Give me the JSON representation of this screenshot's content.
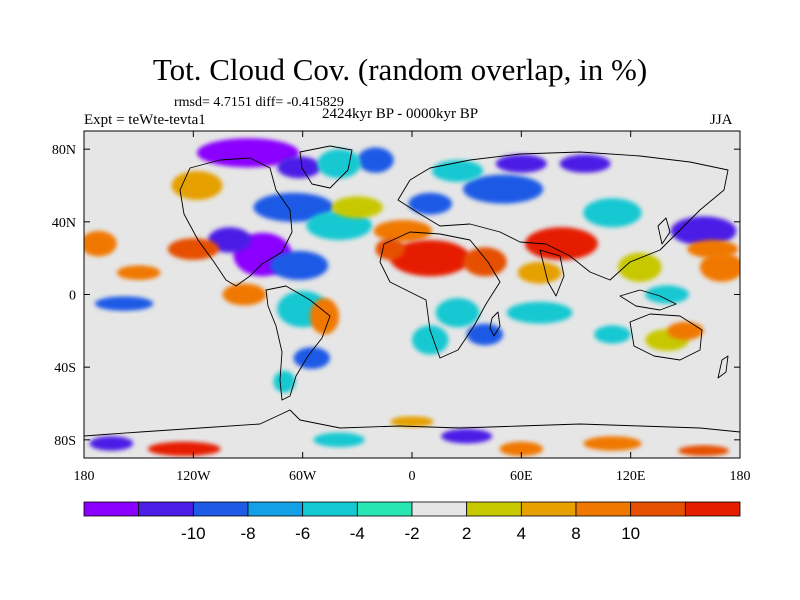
{
  "title": "Tot. Cloud Cov. (random overlap, in %)",
  "stats_text": "rmsd= 4.7151 diff= -0.415829",
  "experiment_text": "Expt = teWte-tevta1",
  "period_text": "2424kyr BP - 0000kyr BP",
  "season_text": "JJA",
  "map": {
    "lon_range": [
      -180,
      180
    ],
    "lat_range": [
      -90,
      90
    ],
    "lon_ticks": [
      {
        "value": -180,
        "label": "180"
      },
      {
        "value": -120,
        "label": "120W"
      },
      {
        "value": -60,
        "label": "60W"
      },
      {
        "value": 0,
        "label": "0"
      },
      {
        "value": 60,
        "label": "60E"
      },
      {
        "value": 120,
        "label": "120E"
      },
      {
        "value": 180,
        "label": "180"
      }
    ],
    "lat_ticks": [
      {
        "value": 80,
        "label": "80N"
      },
      {
        "value": 40,
        "label": "40N"
      },
      {
        "value": 0,
        "label": "0"
      },
      {
        "value": -40,
        "label": "40S"
      },
      {
        "value": -80,
        "label": "80S"
      }
    ],
    "background_color": "#e6e6e6",
    "coastline_color": "#000000",
    "field_regions": [
      {
        "lon": -90,
        "lat": 78,
        "rlon": 28,
        "rlat": 8,
        "level": -10
      },
      {
        "lon": -62,
        "lat": 70,
        "rlon": 12,
        "rlat": 6,
        "level": -8
      },
      {
        "lon": -20,
        "lat": 74,
        "rlon": 10,
        "rlat": 7,
        "level": -6
      },
      {
        "lon": -40,
        "lat": 72,
        "rlon": 12,
        "rlat": 8,
        "level": -4
      },
      {
        "lon": -118,
        "lat": 60,
        "rlon": 14,
        "rlat": 8,
        "level": 4
      },
      {
        "lon": -65,
        "lat": 48,
        "rlon": 22,
        "rlat": 8,
        "level": -6
      },
      {
        "lon": -40,
        "lat": 38,
        "rlon": 18,
        "rlat": 8,
        "level": -4
      },
      {
        "lon": -82,
        "lat": 22,
        "rlon": 16,
        "rlat": 12,
        "level": -10
      },
      {
        "lon": -100,
        "lat": 30,
        "rlon": 12,
        "rlat": 7,
        "level": -8
      },
      {
        "lon": -62,
        "lat": 16,
        "rlon": 16,
        "rlat": 8,
        "level": -6
      },
      {
        "lon": -120,
        "lat": 25,
        "rlon": 14,
        "rlat": 6,
        "level": 8
      },
      {
        "lon": -172,
        "lat": 28,
        "rlon": 10,
        "rlat": 7,
        "level": 6
      },
      {
        "lon": -150,
        "lat": 12,
        "rlon": 12,
        "rlat": 4,
        "level": 6
      },
      {
        "lon": -158,
        "lat": -5,
        "rlon": 16,
        "rlat": 4,
        "level": -6
      },
      {
        "lon": -92,
        "lat": 0,
        "rlon": 12,
        "rlat": 6,
        "level": 6
      },
      {
        "lon": -60,
        "lat": -8,
        "rlon": 14,
        "rlat": 10,
        "level": -4
      },
      {
        "lon": -48,
        "lat": -12,
        "rlon": 8,
        "rlat": 10,
        "level": 6
      },
      {
        "lon": -55,
        "lat": -35,
        "rlon": 10,
        "rlat": 6,
        "level": -6
      },
      {
        "lon": -70,
        "lat": -48,
        "rlon": 6,
        "rlat": 6,
        "level": -4
      },
      {
        "lon": -30,
        "lat": 48,
        "rlon": 14,
        "rlat": 6,
        "level": 2
      },
      {
        "lon": 10,
        "lat": 50,
        "rlon": 12,
        "rlat": 6,
        "level": -6
      },
      {
        "lon": 50,
        "lat": 58,
        "rlon": 22,
        "rlat": 8,
        "level": -6
      },
      {
        "lon": 25,
        "lat": 68,
        "rlon": 14,
        "rlat": 6,
        "level": -4
      },
      {
        "lon": 60,
        "lat": 72,
        "rlon": 14,
        "rlat": 5,
        "level": -8
      },
      {
        "lon": 95,
        "lat": 72,
        "rlon": 14,
        "rlat": 5,
        "level": -8
      },
      {
        "lon": -5,
        "lat": 35,
        "rlon": 16,
        "rlat": 6,
        "level": 6
      },
      {
        "lon": 10,
        "lat": 20,
        "rlon": 22,
        "rlat": 10,
        "level": 10
      },
      {
        "lon": -12,
        "lat": 25,
        "rlon": 8,
        "rlat": 6,
        "level": 8
      },
      {
        "lon": 40,
        "lat": 18,
        "rlon": 12,
        "rlat": 8,
        "level": 8
      },
      {
        "lon": 82,
        "lat": 28,
        "rlon": 20,
        "rlat": 9,
        "level": 10
      },
      {
        "lon": 70,
        "lat": 12,
        "rlon": 12,
        "rlat": 6,
        "level": 4
      },
      {
        "lon": 110,
        "lat": 45,
        "rlon": 16,
        "rlat": 8,
        "level": -4
      },
      {
        "lon": 125,
        "lat": 15,
        "rlon": 12,
        "rlat": 8,
        "level": 2
      },
      {
        "lon": 160,
        "lat": 35,
        "rlon": 18,
        "rlat": 8,
        "level": -8
      },
      {
        "lon": 165,
        "lat": 25,
        "rlon": 14,
        "rlat": 5,
        "level": 6
      },
      {
        "lon": 170,
        "lat": 15,
        "rlon": 12,
        "rlat": 8,
        "level": 6
      },
      {
        "lon": 140,
        "lat": 0,
        "rlon": 12,
        "rlat": 5,
        "level": -4
      },
      {
        "lon": 70,
        "lat": -10,
        "rlon": 18,
        "rlat": 6,
        "level": -4
      },
      {
        "lon": 25,
        "lat": -10,
        "rlon": 12,
        "rlat": 8,
        "level": -4
      },
      {
        "lon": 40,
        "lat": -22,
        "rlon": 10,
        "rlat": 6,
        "level": -6
      },
      {
        "lon": 10,
        "lat": -25,
        "rlon": 10,
        "rlat": 8,
        "level": -4
      },
      {
        "lon": 140,
        "lat": -25,
        "rlon": 12,
        "rlat": 6,
        "level": 2
      },
      {
        "lon": 150,
        "lat": -20,
        "rlon": 10,
        "rlat": 5,
        "level": 6
      },
      {
        "lon": 110,
        "lat": -22,
        "rlon": 10,
        "rlat": 5,
        "level": -4
      },
      {
        "lon": -125,
        "lat": -85,
        "rlon": 20,
        "rlat": 4,
        "level": 10
      },
      {
        "lon": -165,
        "lat": -82,
        "rlon": 12,
        "rlat": 4,
        "level": -8
      },
      {
        "lon": 30,
        "lat": -78,
        "rlon": 14,
        "rlat": 4,
        "level": -8
      },
      {
        "lon": 60,
        "lat": -85,
        "rlon": 12,
        "rlat": 4,
        "level": 6
      },
      {
        "lon": 110,
        "lat": -82,
        "rlon": 16,
        "rlat": 4,
        "level": 6
      },
      {
        "lon": 160,
        "lat": -86,
        "rlon": 14,
        "rlat": 3,
        "level": 8
      },
      {
        "lon": -40,
        "lat": -80,
        "rlon": 14,
        "rlat": 4,
        "level": -4
      },
      {
        "lon": 0,
        "lat": -70,
        "rlon": 12,
        "rlat": 3,
        "level": 4
      }
    ]
  },
  "colorbar": {
    "colors": [
      "#8b00ff",
      "#4b1ee6",
      "#1e5ae6",
      "#14a0e6",
      "#14c8d2",
      "#28e6b4",
      "#e6e6e6",
      "#c8c800",
      "#e6a000",
      "#f07800",
      "#e65000",
      "#e61e00"
    ],
    "labels": [
      {
        "boundary": 2,
        "text": "-10"
      },
      {
        "boundary": 3,
        "text": "-8"
      },
      {
        "boundary": 4,
        "text": "-6"
      },
      {
        "boundary": 5,
        "text": "-4"
      },
      {
        "boundary": 6,
        "text": "-2"
      },
      {
        "boundary": 7,
        "text": "2"
      },
      {
        "boundary": 8,
        "text": "4"
      },
      {
        "boundary": 9,
        "text": "8"
      },
      {
        "boundary": 10,
        "text": "10"
      }
    ],
    "level_colors": {
      "-10": "#8b00ff",
      "-8": "#4b1ee6",
      "-6": "#1e5ae6",
      "-4": "#14c8d2",
      "2": "#c8c800",
      "4": "#e6a000",
      "6": "#f07800",
      "8": "#e65000",
      "10": "#e61e00"
    }
  }
}
